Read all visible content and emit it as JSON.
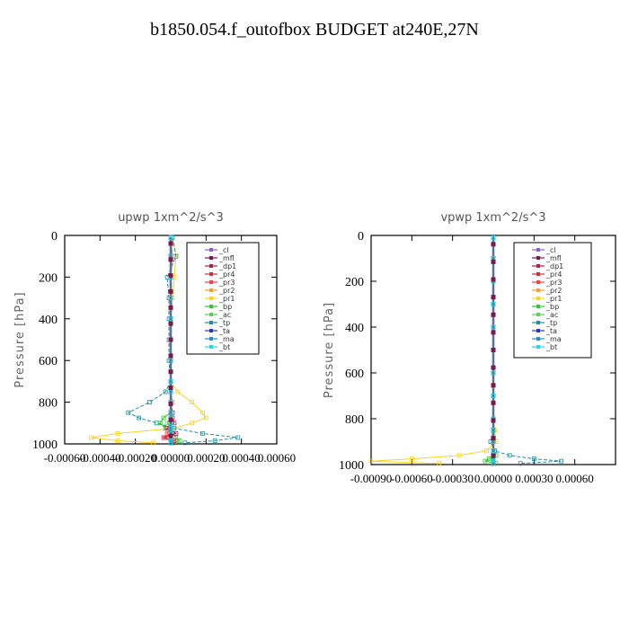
{
  "title": "b1850.054.f_outofbox  BUDGET at240E,27N",
  "chart_data": [
    {
      "type": "line",
      "title": "upwp   1xm^2/s^3",
      "ylabel": "Pressure [hPa]",
      "ylim": [
        1000,
        0
      ],
      "yticks": [
        0,
        200,
        400,
        600,
        800,
        1000
      ],
      "xlim": [
        -0.0006,
        0.0006
      ],
      "xtick_labels": [
        "-0.00060",
        "-0.00040",
        "-0.00020",
        "0.00000",
        "0.00020",
        "0.00040",
        "0.00060"
      ],
      "y": [
        10,
        100,
        200,
        300,
        400,
        500,
        600,
        700,
        750,
        800,
        850,
        875,
        900,
        925,
        950,
        970,
        985,
        995
      ],
      "series": [
        {
          "name": "_cl",
          "color": "#8a5fd0",
          "values": [
            0,
            0,
            0,
            0,
            0,
            0,
            0,
            0,
            0,
            0,
            0,
            0,
            0,
            0,
            0,
            0,
            0,
            0
          ]
        },
        {
          "name": "_mfl",
          "color": "#7a1a4a",
          "values": [
            0,
            0,
            0,
            0,
            0,
            0,
            0,
            0,
            0,
            0,
            0,
            0,
            0,
            0,
            0,
            0,
            0,
            0
          ]
        },
        {
          "name": "_dp1",
          "color": "#b0204a",
          "values": [
            0,
            0,
            0,
            0,
            0,
            0,
            0,
            0,
            0,
            0,
            1e-05,
            1e-05,
            2e-05,
            -2e-05,
            3e-05,
            -4e-05,
            2e-05,
            0
          ]
        },
        {
          "name": "_pr4",
          "color": "#d03040",
          "values": [
            0,
            0,
            0,
            0,
            0,
            0,
            0,
            0,
            0,
            0,
            0,
            0,
            0,
            -1e-05,
            0,
            -3e-05,
            0,
            0
          ]
        },
        {
          "name": "_pr3",
          "color": "#ff4040",
          "values": [
            0,
            0,
            0,
            0,
            0,
            0,
            0,
            0,
            0,
            0,
            0,
            0,
            0,
            0,
            -2e-05,
            0,
            1e-05,
            0
          ]
        },
        {
          "name": "_pr2",
          "color": "#ff9a30",
          "values": [
            0,
            1e-05,
            0,
            0,
            0,
            0,
            0,
            0,
            0,
            1e-05,
            0,
            0,
            0,
            0,
            0,
            0,
            0,
            0
          ]
        },
        {
          "name": "_pr1",
          "color": "#ffd21a",
          "values": [
            1e-05,
            3e-05,
            2e-05,
            1e-05,
            0,
            0,
            0,
            0,
            4e-05,
            0.00012,
            0.00018,
            0.0002,
            0.00012,
            2e-05,
            -0.0003,
            -0.00045,
            -0.0003,
            -0.0001
          ]
        },
        {
          "name": "_bp",
          "color": "#2ec832",
          "values": [
            0,
            0,
            0,
            0,
            0,
            0,
            0,
            0,
            0,
            0,
            0,
            -4e-05,
            -6e-05,
            -3e-05,
            1e-05,
            3e-05,
            5e-05,
            2e-05
          ]
        },
        {
          "name": "_ac",
          "color": "#5ad05a",
          "values": [
            0,
            0,
            0,
            0,
            0,
            0,
            0,
            0,
            0,
            0,
            0,
            0,
            -2e-05,
            0,
            0,
            0,
            0,
            0
          ]
        },
        {
          "name": "_tp",
          "color": "#1f8fa0",
          "values": [
            1e-05,
            3e-05,
            -2e-05,
            -1e-05,
            -1e-05,
            -1e-05,
            -1e-05,
            0,
            -3e-05,
            -0.00012,
            -0.00024,
            -0.00018,
            -8e-05,
            2e-05,
            0.00018,
            0.00038,
            0.00025,
            8e-05
          ]
        },
        {
          "name": "_ta",
          "color": "#2838d0",
          "values": [
            0,
            0,
            0,
            0,
            0,
            0,
            0,
            0,
            0,
            0,
            0,
            0,
            0,
            0,
            0,
            0,
            0,
            0
          ]
        },
        {
          "name": "_ma",
          "color": "#2a8ad0",
          "values": [
            0,
            0,
            0,
            0,
            0,
            0,
            0,
            0,
            0,
            0,
            0,
            0,
            0,
            0,
            0,
            0,
            0,
            0
          ]
        },
        {
          "name": "_bt",
          "color": "#20d8e8",
          "values": [
            0,
            0,
            0,
            0,
            0,
            0,
            0,
            0,
            0,
            0,
            0,
            0,
            0,
            0,
            0,
            0,
            0,
            0
          ]
        }
      ]
    },
    {
      "type": "line",
      "title": "vpwp   1xm^2/s^3",
      "ylabel": "Pressure [hPa]",
      "ylim": [
        1000,
        0
      ],
      "yticks": [
        0,
        200,
        400,
        600,
        800,
        1000
      ],
      "xlim": [
        -0.0009,
        0.0009
      ],
      "xtick_labels": [
        "-0.00090",
        "-0.00060",
        "-0.00030",
        "0.00000",
        "0.00030",
        "0.00060"
      ],
      "y": [
        10,
        100,
        200,
        300,
        400,
        500,
        600,
        700,
        800,
        850,
        900,
        940,
        960,
        975,
        985,
        995
      ],
      "series": [
        {
          "name": "_cl",
          "color": "#8a5fd0",
          "values": [
            0,
            0,
            0,
            0,
            0,
            0,
            0,
            0,
            0,
            0,
            0,
            0,
            0,
            0,
            0,
            0
          ]
        },
        {
          "name": "_mfl",
          "color": "#7a1a4a",
          "values": [
            0,
            0,
            0,
            0,
            0,
            0,
            0,
            0,
            0,
            0,
            0,
            0,
            0,
            0,
            0,
            0
          ]
        },
        {
          "name": "_dp1",
          "color": "#b0204a",
          "values": [
            0,
            0,
            0,
            0,
            0,
            0,
            0,
            0,
            0,
            0,
            0,
            0,
            0,
            0,
            0,
            0
          ]
        },
        {
          "name": "_pr4",
          "color": "#d03040",
          "values": [
            0,
            0,
            0,
            0,
            0,
            0,
            0,
            0,
            0,
            0,
            0,
            0,
            0,
            0,
            0,
            0
          ]
        },
        {
          "name": "_pr3",
          "color": "#ff4040",
          "values": [
            0,
            0,
            0,
            0,
            0,
            0,
            0,
            0,
            0,
            0,
            0,
            0,
            0,
            0,
            0,
            0
          ]
        },
        {
          "name": "_pr2",
          "color": "#ff9a30",
          "values": [
            0,
            0,
            0,
            0,
            0,
            0,
            0,
            0,
            0,
            0,
            0,
            0,
            0,
            0,
            0,
            0
          ]
        },
        {
          "name": "_pr1",
          "color": "#ffd21a",
          "values": [
            0,
            0,
            0,
            0,
            0,
            0,
            0,
            0,
            0,
            1e-05,
            2e-05,
            -5e-05,
            -0.00025,
            -0.0006,
            -0.0009,
            -0.0004
          ]
        },
        {
          "name": "_bp",
          "color": "#2ec832",
          "values": [
            0,
            0,
            0,
            0,
            0,
            0,
            0,
            0,
            0,
            0,
            0,
            0,
            2e-05,
            -3e-05,
            -6e-05,
            2e-05
          ]
        },
        {
          "name": "_ac",
          "color": "#5ad05a",
          "values": [
            0,
            0,
            0,
            0,
            0,
            0,
            0,
            0,
            0,
            0,
            0,
            0,
            0,
            0,
            0,
            0
          ]
        },
        {
          "name": "_tp",
          "color": "#1f8fa0",
          "values": [
            0,
            0,
            0,
            0,
            0,
            0,
            0,
            0,
            0,
            0,
            -2e-05,
            1e-05,
            0.00012,
            0.0003,
            0.0005,
            0.0002
          ]
        },
        {
          "name": "_ta",
          "color": "#2838d0",
          "values": [
            0,
            0,
            0,
            0,
            0,
            0,
            0,
            0,
            0,
            0,
            0,
            0,
            0,
            0,
            0,
            0
          ]
        },
        {
          "name": "_ma",
          "color": "#2a8ad0",
          "values": [
            0,
            0,
            0,
            0,
            0,
            0,
            0,
            0,
            0,
            0,
            0,
            0,
            0,
            0,
            0,
            0
          ]
        },
        {
          "name": "_bt",
          "color": "#20d8e8",
          "values": [
            0,
            0,
            0,
            0,
            0,
            0,
            0,
            0,
            0,
            0,
            0,
            0,
            0,
            0,
            0,
            0
          ]
        }
      ]
    }
  ]
}
